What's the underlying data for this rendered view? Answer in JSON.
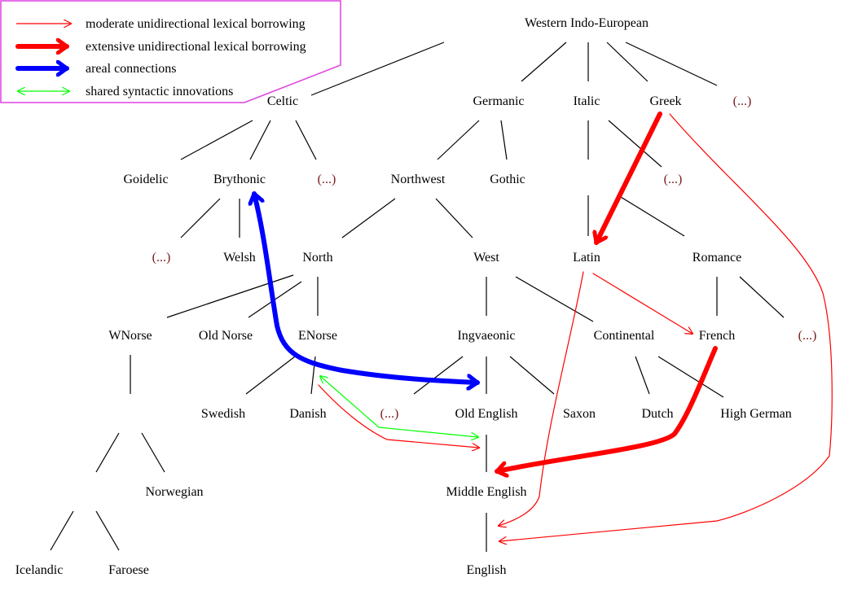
{
  "legend": {
    "items": [
      {
        "label": "moderate unidirectional lexical borrowing",
        "style": "thin-arrow",
        "color": "#ff0000"
      },
      {
        "label": "extensive unidirectional lexical borrowing",
        "style": "thick-arrow",
        "color": "#ff0000"
      },
      {
        "label": "areal connections",
        "style": "thick-arrow",
        "color": "#0000ff"
      },
      {
        "label": "shared syntactic innovations",
        "style": "thin-double-arrow",
        "color": "#00ff00"
      }
    ],
    "border_color": "#e040e0"
  },
  "nodes": {
    "wie": "Western Indo-European",
    "celtic": "Celtic",
    "germanic": "Germanic",
    "italic": "Italic",
    "greek": "Greek",
    "wie_other": "(...)",
    "goidelic": "Goidelic",
    "brythonic": "Brythonic",
    "celtic_other": "(...)",
    "northwest": "Northwest",
    "gothic": "Gothic",
    "italic_other": "(...)",
    "bryth_other": "(...)",
    "welsh": "Welsh",
    "north": "North",
    "west": "West",
    "latin": "Latin",
    "romance": "Romance",
    "wnorse": "WNorse",
    "oldnorse": "Old Norse",
    "enorse": "ENorse",
    "ingvaeonic": "Ingvaeonic",
    "continental": "Continental",
    "french": "French",
    "romance_other": "(...)",
    "swedish": "Swedish",
    "danish": "Danish",
    "ingv_other": "(...)",
    "oldenglish": "Old English",
    "saxon": "Saxon",
    "dutch": "Dutch",
    "highgerman": "High German",
    "norwegian": "Norwegian",
    "middleenglish": "Middle English",
    "icelandic": "Icelandic",
    "faroese": "Faroese",
    "english": "English"
  },
  "relations": [
    {
      "from": "greek",
      "to": "latin",
      "type": "extensive unidirectional lexical borrowing"
    },
    {
      "from": "french",
      "to": "middleenglish",
      "type": "extensive unidirectional lexical borrowing"
    },
    {
      "from": "brythonic",
      "to": "oldenglish",
      "type": "areal connections"
    },
    {
      "from": "enorse",
      "to": "middleenglish",
      "type": "shared syntactic innovations"
    },
    {
      "from": "danish",
      "to": "middleenglish",
      "type": "moderate unidirectional lexical borrowing"
    },
    {
      "from": "latin",
      "to": "english",
      "type": "moderate unidirectional lexical borrowing"
    },
    {
      "from": "latin",
      "to": "french",
      "type": "moderate unidirectional lexical borrowing"
    },
    {
      "from": "greek",
      "to": "english",
      "type": "moderate unidirectional lexical borrowing"
    }
  ]
}
